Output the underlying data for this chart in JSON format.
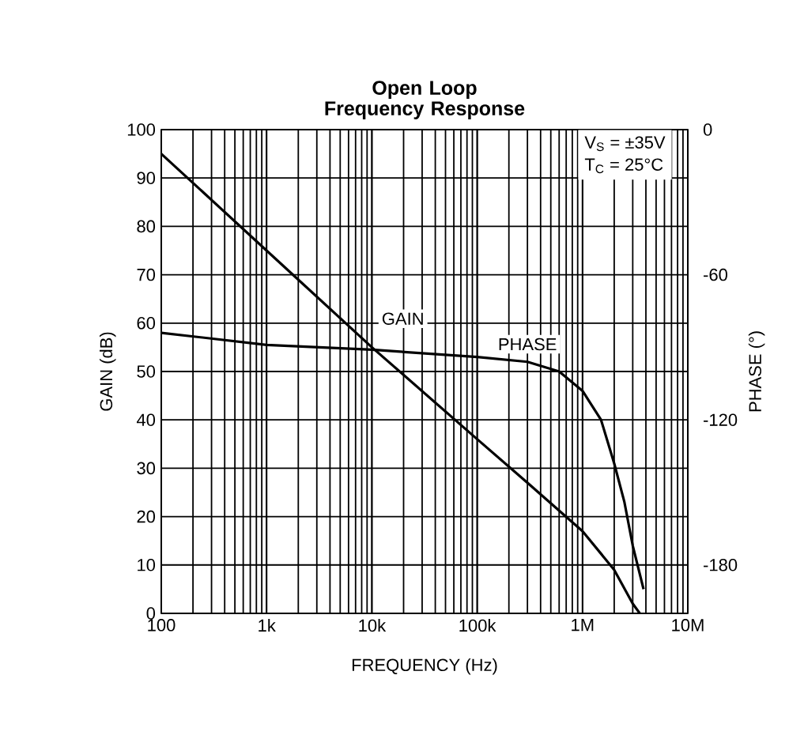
{
  "chart_data": {
    "type": "line",
    "title": "Open Loop Frequency Response",
    "xlabel": "FREQUENCY (Hz)",
    "ylabel": "GAIN (dB)",
    "y2label": "PHASE (°)",
    "log": "x",
    "grid": true,
    "marker": "none",
    "line_style": "solid",
    "xlim": [
      100,
      10000000
    ],
    "xticks": [
      100,
      {
        "value": 1000,
        "label": "1k"
      },
      {
        "value": 10000,
        "label": "10k"
      },
      {
        "value": 100000,
        "label": "100k"
      },
      {
        "value": 1000000,
        "label": "1M"
      },
      {
        "value": 10000000,
        "label": "10M"
      }
    ],
    "ylim": [
      0,
      100
    ],
    "yticks": [
      0,
      10,
      20,
      30,
      40,
      50,
      60,
      70,
      80,
      90,
      100
    ],
    "y2lim": [
      -200,
      0
    ],
    "y2ticks": [
      0,
      -60,
      -120,
      -180
    ],
    "annotations": [
      "V$_{S}$ = ±35V",
      "T$_{C}$ = 25°C"
    ],
    "series": [
      {
        "name": "GAIN",
        "color": "#000000",
        "x": [
          100,
          1000,
          10000,
          100000,
          300000,
          1000000,
          2000000,
          3000000,
          3500000
        ],
        "values": [
          95,
          75,
          55,
          36,
          27,
          17,
          9,
          2,
          0
        ]
      },
      {
        "name": "PHASE",
        "color": "#000000",
        "axis": "y2",
        "x": [
          100,
          1000,
          10000,
          100000,
          300000,
          600000,
          1000000,
          1500000,
          2000000,
          2500000,
          3000000,
          3800000
        ],
        "values": [
          -84,
          -89,
          -91,
          -94,
          -96,
          -100,
          -108,
          -120,
          -138,
          -154,
          -172,
          -190
        ]
      }
    ]
  }
}
